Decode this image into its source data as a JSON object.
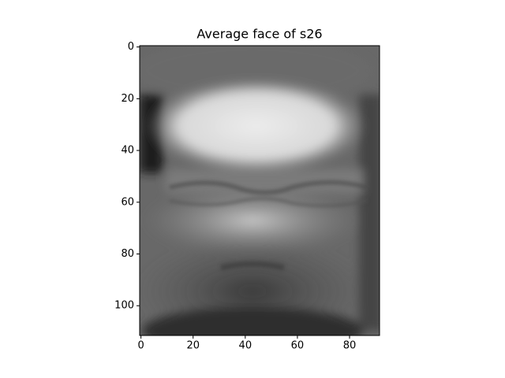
{
  "chart_data": {
    "type": "image",
    "title": "Average face of s26",
    "xlim": [
      -0.5,
      91.5
    ],
    "ylim": [
      111.5,
      -0.5
    ],
    "xticks": [
      0,
      20,
      40,
      60,
      80
    ],
    "yticks": [
      0,
      20,
      40,
      60,
      80,
      100
    ],
    "colormap": "gray"
  }
}
